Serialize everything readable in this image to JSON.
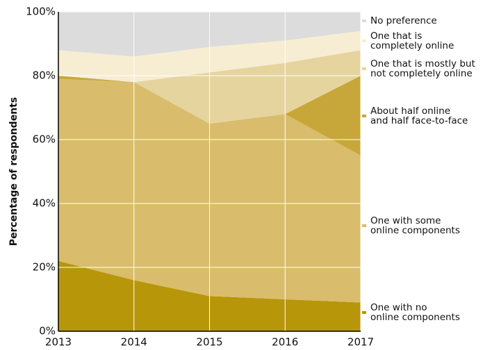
{
  "chart_data": {
    "type": "stacked_area",
    "y_label": "Percentage of respondents",
    "x": [
      2013,
      2014,
      2015,
      2016,
      2017
    ],
    "xlim": [
      2013,
      2017
    ],
    "xticks": [
      2013,
      2014,
      2015,
      2016,
      2017
    ],
    "ylim": [
      0,
      100
    ],
    "yticks": [
      {
        "value": 0,
        "label": "0%"
      },
      {
        "value": 20,
        "label": "20%"
      },
      {
        "value": 40,
        "label": "40%"
      },
      {
        "value": 60,
        "label": "60%"
      },
      {
        "value": 80,
        "label": "80%"
      },
      {
        "value": 100,
        "label": "100%"
      }
    ],
    "grid": true,
    "series": [
      {
        "name": "One with no\nonline components",
        "color": "#b8960a",
        "values": [
          22,
          16,
          11,
          10,
          9
        ]
      },
      {
        "name": "One with some\nonline components",
        "color": "#d9bd6c",
        "values": [
          57,
          62,
          54,
          58,
          46
        ]
      },
      {
        "name": "About half online\nand half face-to-face",
        "color": "#c8a73a",
        "values": [
          1,
          0,
          0,
          0,
          25
        ]
      },
      {
        "name": "One that is mostly but\nnot completely online",
        "color": "#e6d49f",
        "values": [
          0,
          0,
          16,
          16,
          8
        ]
      },
      {
        "name": "One that is\ncompletely online",
        "color": "#f6edd2",
        "values": [
          8,
          8,
          8,
          7,
          6
        ]
      },
      {
        "name": "No preference",
        "color": "#dcdcdc",
        "values": [
          12,
          14,
          11,
          9,
          6
        ]
      }
    ]
  }
}
